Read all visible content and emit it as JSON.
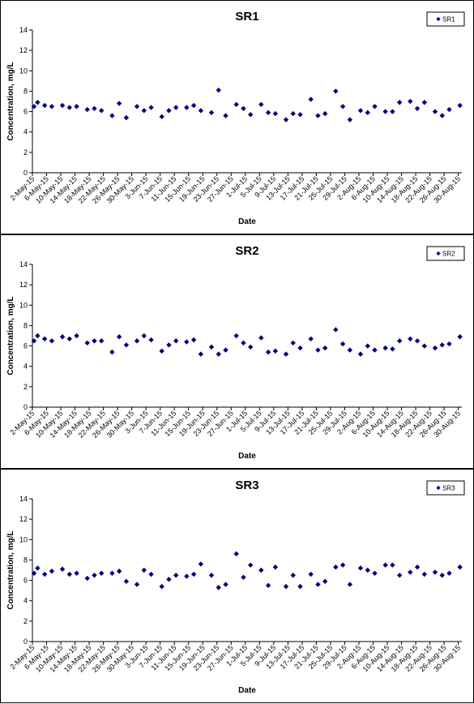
{
  "chart_data": [
    {
      "type": "scatter",
      "title": "SR1",
      "xlabel": "Date",
      "ylabel": "Concentration, mg/L",
      "ylim": [
        0,
        14
      ],
      "yticks": [
        0,
        2,
        4,
        6,
        8,
        10,
        12,
        14
      ],
      "grid": false,
      "legend": "top-right",
      "marker_color": "#000080",
      "xtick_labels": [
        "2-May-15",
        "6-May-15",
        "10-May-15",
        "14-May-15",
        "18-May-15",
        "22-May-15",
        "26-May-15",
        "30-May-15",
        "3-Jun-15",
        "7-Jun-15",
        "11-Jun-15",
        "15-Jun-15",
        "19-Jun-15",
        "23-Jun-15",
        "27-Jun-15",
        "1-Jul-15",
        "5-Jul-15",
        "9-Jul-15",
        "13-Jul-15",
        "17-Jul-15",
        "21-Jul-15",
        "25-Jul-15",
        "29-Jul-15",
        "2-Aug-15",
        "6-Aug-15",
        "10-Aug-15",
        "14-Aug-15",
        "18-Aug-15",
        "22-Aug-15",
        "26-Aug-15",
        "30-Aug-15"
      ],
      "series": [
        {
          "name": "SR1",
          "x": [
            "2-May-15",
            "3-May-15",
            "5-May-15",
            "7-May-15",
            "10-May-15",
            "12-May-15",
            "14-May-15",
            "17-May-15",
            "19-May-15",
            "21-May-15",
            "24-May-15",
            "26-May-15",
            "28-May-15",
            "31-May-15",
            "2-Jun-15",
            "4-Jun-15",
            "7-Jun-15",
            "9-Jun-15",
            "11-Jun-15",
            "14-Jun-15",
            "16-Jun-15",
            "18-Jun-15",
            "21-Jun-15",
            "23-Jun-15",
            "25-Jun-15",
            "28-Jun-15",
            "30-Jun-15",
            "2-Jul-15",
            "5-Jul-15",
            "7-Jul-15",
            "9-Jul-15",
            "12-Jul-15",
            "14-Jul-15",
            "16-Jul-15",
            "19-Jul-15",
            "21-Jul-15",
            "23-Jul-15",
            "26-Jul-15",
            "28-Jul-15",
            "30-Jul-15",
            "2-Aug-15",
            "4-Aug-15",
            "6-Aug-15",
            "9-Aug-15",
            "11-Aug-15",
            "13-Aug-15",
            "16-Aug-15",
            "18-Aug-15",
            "20-Aug-15",
            "23-Aug-15",
            "25-Aug-15",
            "27-Aug-15",
            "30-Aug-15"
          ],
          "y": [
            6.5,
            6.9,
            6.6,
            6.5,
            6.6,
            6.4,
            6.5,
            6.2,
            6.3,
            6.1,
            5.6,
            6.8,
            5.4,
            6.5,
            6.1,
            6.4,
            5.5,
            6.1,
            6.4,
            6.4,
            6.6,
            6.1,
            5.9,
            8.1,
            5.6,
            6.7,
            6.3,
            5.7,
            6.7,
            5.9,
            5.8,
            5.2,
            5.8,
            5.7,
            7.2,
            5.6,
            5.8,
            8.0,
            6.5,
            5.2,
            6.1,
            5.9,
            6.5,
            6.0,
            6.0,
            6.9,
            7.0,
            6.3,
            6.9,
            6.0,
            5.6,
            6.2,
            6.6
          ]
        }
      ]
    },
    {
      "type": "scatter",
      "title": "SR2",
      "xlabel": "Date",
      "ylabel": "Concentration, mg/L",
      "ylim": [
        0,
        14
      ],
      "yticks": [
        0,
        2,
        4,
        6,
        8,
        10,
        12,
        14
      ],
      "grid": false,
      "legend": "top-right",
      "marker_color": "#000080",
      "xtick_labels": [
        "2-May-15",
        "6-May-15",
        "10-May-15",
        "14-May-15",
        "18-May-15",
        "22-May-15",
        "26-May-15",
        "30-May-15",
        "3-Jun-15",
        "7-Jun-15",
        "11-Jun-15",
        "15-Jun-15",
        "19-Jun-15",
        "23-Jun-15",
        "27-Jun-15",
        "1-Jul-15",
        "5-Jul-15",
        "9-Jul-15",
        "13-Jul-15",
        "17-Jul-15",
        "21-Jul-15",
        "25-Jul-15",
        "29-Jul-15",
        "2-Aug-15",
        "6-Aug-15",
        "10-Aug-15",
        "14-Aug-15",
        "18-Aug-15",
        "22-Aug-15",
        "26-Aug-15",
        "30-Aug-15"
      ],
      "series": [
        {
          "name": "SR2",
          "x": [
            "2-May-15",
            "3-May-15",
            "5-May-15",
            "7-May-15",
            "10-May-15",
            "12-May-15",
            "14-May-15",
            "17-May-15",
            "19-May-15",
            "21-May-15",
            "24-May-15",
            "26-May-15",
            "28-May-15",
            "31-May-15",
            "2-Jun-15",
            "4-Jun-15",
            "7-Jun-15",
            "9-Jun-15",
            "11-Jun-15",
            "14-Jun-15",
            "16-Jun-15",
            "18-Jun-15",
            "21-Jun-15",
            "23-Jun-15",
            "25-Jun-15",
            "28-Jun-15",
            "30-Jun-15",
            "2-Jul-15",
            "5-Jul-15",
            "7-Jul-15",
            "9-Jul-15",
            "12-Jul-15",
            "14-Jul-15",
            "16-Jul-15",
            "19-Jul-15",
            "21-Jul-15",
            "23-Jul-15",
            "26-Jul-15",
            "28-Jul-15",
            "30-Jul-15",
            "2-Aug-15",
            "4-Aug-15",
            "6-Aug-15",
            "9-Aug-15",
            "11-Aug-15",
            "13-Aug-15",
            "16-Aug-15",
            "18-Aug-15",
            "20-Aug-15",
            "23-Aug-15",
            "25-Aug-15",
            "27-Aug-15",
            "30-Aug-15"
          ],
          "y": [
            6.5,
            7.0,
            6.7,
            6.5,
            6.9,
            6.7,
            7.0,
            6.3,
            6.5,
            6.5,
            5.4,
            6.9,
            6.1,
            6.5,
            7.0,
            6.6,
            5.5,
            6.1,
            6.5,
            6.4,
            6.6,
            5.2,
            5.9,
            5.2,
            5.6,
            7.0,
            6.3,
            5.9,
            6.8,
            5.4,
            5.5,
            5.2,
            6.3,
            5.8,
            6.7,
            5.6,
            5.8,
            7.6,
            6.2,
            5.6,
            5.2,
            6.0,
            5.6,
            5.8,
            5.7,
            6.5,
            6.7,
            6.5,
            6.0,
            5.8,
            6.1,
            6.2,
            6.9
          ]
        }
      ]
    },
    {
      "type": "scatter",
      "title": "SR3",
      "xlabel": "Date",
      "ylabel": "Concentration, mg/L",
      "ylim": [
        0,
        14
      ],
      "yticks": [
        0,
        2,
        4,
        6,
        8,
        10,
        12,
        14
      ],
      "grid": false,
      "legend": "top-right",
      "marker_color": "#000080",
      "xtick_labels": [
        "2-May-15",
        "6-May-15",
        "10-May-15",
        "14-May-15",
        "18-May-15",
        "22-May-15",
        "26-May-15",
        "30-May-15",
        "3-Jun-15",
        "7-Jun-15",
        "11-Jun-15",
        "15-Jun-15",
        "19-Jun-15",
        "23-Jun-15",
        "27-Jun-15",
        "1-Jul-15",
        "5-Jul-15",
        "9-Jul-15",
        "13-Jul-15",
        "17-Jul-15",
        "21-Jul-15",
        "25-Jul-15",
        "29-Jul-15",
        "2-Aug-15",
        "6-Aug-15",
        "10-Aug-15",
        "14-Aug-15",
        "18-Aug-15",
        "22-Aug-15",
        "26-Aug-15",
        "30-Aug-15"
      ],
      "series": [
        {
          "name": "SR3",
          "x": [
            "2-May-15",
            "3-May-15",
            "5-May-15",
            "7-May-15",
            "10-May-15",
            "12-May-15",
            "14-May-15",
            "17-May-15",
            "19-May-15",
            "21-May-15",
            "24-May-15",
            "26-May-15",
            "28-May-15",
            "31-May-15",
            "2-Jun-15",
            "4-Jun-15",
            "7-Jun-15",
            "9-Jun-15",
            "11-Jun-15",
            "14-Jun-15",
            "16-Jun-15",
            "18-Jun-15",
            "21-Jun-15",
            "23-Jun-15",
            "25-Jun-15",
            "28-Jun-15",
            "30-Jun-15",
            "2-Jul-15",
            "5-Jul-15",
            "7-Jul-15",
            "9-Jul-15",
            "12-Jul-15",
            "14-Jul-15",
            "16-Jul-15",
            "19-Jul-15",
            "21-Jul-15",
            "23-Jul-15",
            "26-Jul-15",
            "28-Jul-15",
            "30-Jul-15",
            "2-Aug-15",
            "4-Aug-15",
            "6-Aug-15",
            "9-Aug-15",
            "11-Aug-15",
            "13-Aug-15",
            "16-Aug-15",
            "18-Aug-15",
            "20-Aug-15",
            "23-Aug-15",
            "25-Aug-15",
            "27-Aug-15",
            "30-Aug-15"
          ],
          "y": [
            6.7,
            7.2,
            6.6,
            6.9,
            7.1,
            6.6,
            6.7,
            6.2,
            6.5,
            6.7,
            6.7,
            6.9,
            5.9,
            5.6,
            7.0,
            6.6,
            5.4,
            6.1,
            6.5,
            6.4,
            6.6,
            7.6,
            6.5,
            5.3,
            5.6,
            8.6,
            6.3,
            7.5,
            7.0,
            5.5,
            7.3,
            5.4,
            6.5,
            5.4,
            6.6,
            5.6,
            5.9,
            7.3,
            7.5,
            5.6,
            7.2,
            7.0,
            6.7,
            7.5,
            7.5,
            6.5,
            6.8,
            7.3,
            6.6,
            6.8,
            6.5,
            6.7,
            7.3
          ]
        }
      ]
    }
  ]
}
